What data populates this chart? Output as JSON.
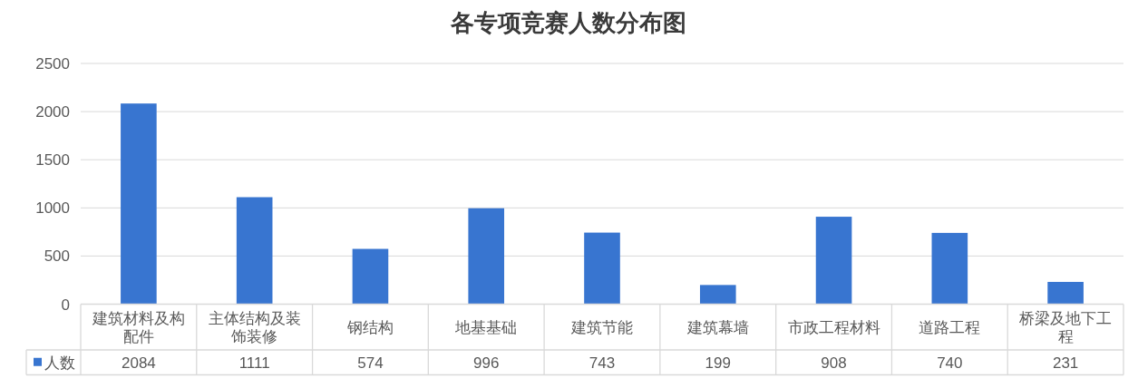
{
  "chart_data": {
    "type": "bar",
    "title": "各专项竞赛人数分布图",
    "categories": [
      "建筑材料及构配件",
      "主体结构及装饰装修",
      "钢结构",
      "地基基础",
      "建筑节能",
      "建筑幕墙",
      "市政工程材料",
      "道路工程",
      "桥梁及地下工程"
    ],
    "series": [
      {
        "name": "人数",
        "color": "#3875d0",
        "values": [
          2084,
          1111,
          574,
          996,
          743,
          199,
          908,
          740,
          231
        ]
      }
    ],
    "ylim": [
      0,
      2500
    ],
    "yticks": [
      0,
      500,
      1000,
      1500,
      2000,
      2500
    ],
    "grid": "y",
    "legend": "bottom left",
    "data_labels": true
  }
}
